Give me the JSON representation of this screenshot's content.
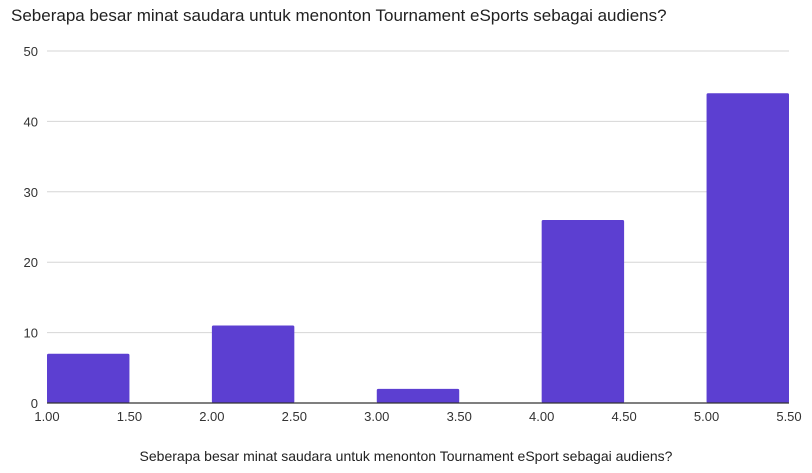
{
  "chart_data": {
    "type": "bar",
    "title": "Seberapa besar minat saudara untuk menonton Tournament eSports sebagai audiens?",
    "xlabel": "Seberapa besar minat saudara untuk menonton Tournament eSport sebagai audiens?",
    "ylabel": "",
    "xlim": [
      1.0,
      5.5
    ],
    "ylim": [
      0,
      50
    ],
    "x_ticks": [
      "1.00",
      "1.50",
      "2.00",
      "2.50",
      "3.00",
      "3.50",
      "4.00",
      "4.50",
      "5.00",
      "5.50"
    ],
    "y_ticks": [
      "0",
      "10",
      "20",
      "30",
      "40",
      "50"
    ],
    "bins": [
      {
        "start": 1.0,
        "end": 1.5,
        "value": 7
      },
      {
        "start": 2.0,
        "end": 2.5,
        "value": 11
      },
      {
        "start": 3.0,
        "end": 3.5,
        "value": 2
      },
      {
        "start": 4.0,
        "end": 4.5,
        "value": 26
      },
      {
        "start": 5.0,
        "end": 5.5,
        "value": 44
      }
    ],
    "bar_color": "#5c3fd1",
    "grid": true,
    "legend": "none"
  }
}
